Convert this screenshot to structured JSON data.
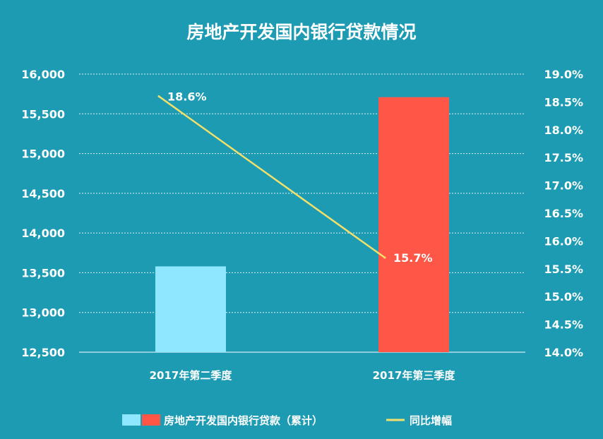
{
  "chart_data": {
    "type": "bar",
    "title": "房地产开发国内银行贷款情况",
    "categories": [
      "2017年第二季度",
      "2017年第三季度"
    ],
    "series": [
      {
        "name": "房地产开发国内银行贷款（累计）",
        "type": "bar",
        "axis": "left",
        "values": [
          13580,
          15710
        ],
        "colors": [
          "#8ee6ff",
          "#ff5747"
        ]
      },
      {
        "name": "同比增幅",
        "type": "line",
        "axis": "right",
        "values": [
          18.6,
          15.7
        ],
        "labels": [
          "18.6%",
          "15.7%"
        ],
        "color": "#f2e06a"
      }
    ],
    "ylim_left": [
      12500,
      16000
    ],
    "ylim_right": [
      14.0,
      19.0
    ],
    "yticks_left": [
      "12,500",
      "13,000",
      "13,500",
      "14,000",
      "14,500",
      "15,000",
      "15,500",
      "16,000"
    ],
    "yticks_right": [
      "14.0%",
      "14.5%",
      "15.0%",
      "15.5%",
      "16.0%",
      "16.5%",
      "17.0%",
      "17.5%",
      "18.0%",
      "18.5%",
      "19.0%"
    ],
    "grid": true,
    "legend_position": "bottom"
  }
}
